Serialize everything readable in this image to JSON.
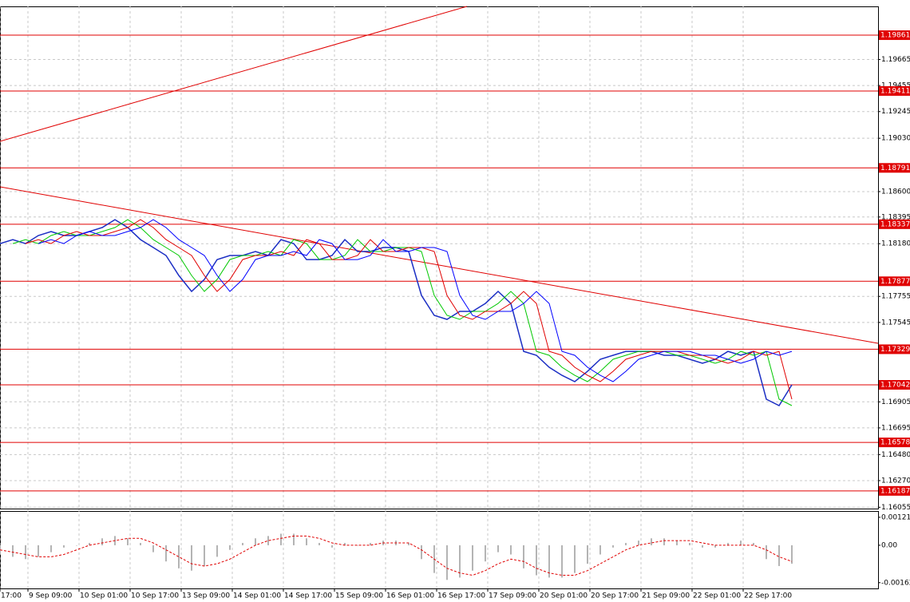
{
  "chart_data": [
    {
      "type": "line",
      "xlim": [
        0,
        68.75
      ],
      "ylim": [
        1.16038,
        1.20093
      ],
      "yticks": [
        1.19665,
        1.19455,
        1.19245,
        {
          "value": 1.1903,
          "label": "1.19030"
        },
        {
          "value": 1.186,
          "label": "1.18600"
        },
        1.18395,
        {
          "value": 1.1818,
          "label": "1.18180"
        },
        1.17755,
        1.17545,
        1.16905,
        1.16695,
        {
          "value": 1.1648,
          "label": "1.16480"
        },
        {
          "value": 1.1627,
          "label": "1.16270"
        },
        1.16055
      ],
      "xticks": [
        {
          "value": 0,
          "label": "17:00"
        },
        {
          "value": 2.1875,
          "label": "9 Sep 09:00"
        },
        {
          "value": 6.1875,
          "label": "10 Sep 01:00"
        },
        {
          "value": 10.1875,
          "label": "10 Sep 17:00"
        },
        {
          "value": 14.1875,
          "label": "13 Sep 09:00"
        },
        {
          "value": 18.1875,
          "label": "14 Sep 01:00"
        },
        {
          "value": 22.1875,
          "label": "14 Sep 17:00"
        },
        {
          "value": 26.1875,
          "label": "15 Sep 09:00"
        },
        {
          "value": 30.1875,
          "label": "16 Sep 01:00"
        },
        {
          "value": 34.1875,
          "label": "16 Sep 17:00"
        },
        {
          "value": 38.1875,
          "label": "17 Sep 09:00"
        },
        {
          "value": 42.1875,
          "label": "20 Sep 01:00"
        },
        {
          "value": 46.1875,
          "label": "20 Sep 17:00"
        },
        {
          "value": 50.1875,
          "label": "21 Sep 09:00"
        },
        {
          "value": 54.1875,
          "label": "22 Sep 01:00"
        },
        {
          "value": 58.1875,
          "label": "22 Sep 17:00"
        }
      ],
      "grid": true,
      "levels": [
        1.19861,
        1.19411,
        1.18791,
        1.18337,
        1.17877,
        1.17329,
        1.17042,
        1.16578,
        1.16187
      ],
      "level_color": "#e00000",
      "trendlines": [
        {
          "x": [
            0,
            36.56
          ],
          "y": [
            1.19005,
            1.20093
          ]
        },
        {
          "x": [
            0,
            68.75
          ],
          "y": [
            1.18638,
            1.17377
          ]
        }
      ],
      "series": [
        {
          "color": "#1c2fc4",
          "values": [
            1.18181,
            1.18213,
            1.18181,
            1.18246,
            1.18278,
            1.18246,
            1.18246,
            1.18278,
            1.1831,
            1.18374,
            1.1831,
            1.18213,
            1.18149,
            1.18085,
            1.17924,
            1.17795,
            1.17892,
            1.18052,
            1.18085,
            1.18085,
            1.18117,
            1.18085,
            1.18213,
            1.18181,
            1.18052,
            1.18052,
            1.18085,
            1.18213,
            1.18117,
            1.18117,
            1.18149,
            1.18149,
            1.18117,
            1.17763,
            1.17602,
            1.1757,
            1.17634,
            1.17634,
            1.17698,
            1.17795,
            1.17698,
            1.17312,
            1.1728,
            1.17184,
            1.17119,
            1.17068,
            1.17151,
            1.17248,
            1.1728,
            1.17312,
            1.17312,
            1.17312,
            1.1728,
            1.1728,
            1.17248,
            1.17216,
            1.17248,
            1.17312,
            1.1728,
            1.17312,
            1.16926,
            1.16875,
            1.17042
          ]
        },
        {
          "color": "#00c800",
          "values": [
            null,
            1.18181,
            1.18213,
            1.18181,
            1.18246,
            1.18278,
            1.18246,
            1.18246,
            1.18278,
            1.1831,
            1.18374,
            1.1831,
            1.18213,
            1.18149,
            1.18085,
            1.17924,
            1.17795,
            1.17892,
            1.18052,
            1.18085,
            1.18085,
            1.18117,
            1.18085,
            1.18213,
            1.18181,
            1.18052,
            1.18052,
            1.18085,
            1.18213,
            1.18117,
            1.18117,
            1.18149,
            1.18149,
            1.18117,
            1.17763,
            1.17602,
            1.1757,
            1.17634,
            1.17634,
            1.17698,
            1.17795,
            1.17698,
            1.17312,
            1.1728,
            1.17184,
            1.17119,
            1.17068,
            1.17151,
            1.17248,
            1.1728,
            1.17312,
            1.17312,
            1.17312,
            1.1728,
            1.1728,
            1.17248,
            1.17216,
            1.17248,
            1.17312,
            1.1728,
            1.17312,
            1.16926,
            1.16875
          ]
        },
        {
          "color": "#e00000",
          "values": [
            null,
            null,
            1.18181,
            1.18213,
            1.18181,
            1.18246,
            1.18278,
            1.18246,
            1.18246,
            1.18278,
            1.1831,
            1.18374,
            1.1831,
            1.18213,
            1.18149,
            1.18085,
            1.17924,
            1.17795,
            1.17892,
            1.18052,
            1.18085,
            1.18085,
            1.18117,
            1.18085,
            1.18213,
            1.18181,
            1.18052,
            1.18052,
            1.18085,
            1.18213,
            1.18117,
            1.18117,
            1.18149,
            1.18149,
            1.18117,
            1.17763,
            1.17602,
            1.1757,
            1.17634,
            1.17634,
            1.17698,
            1.17795,
            1.17698,
            1.17312,
            1.1728,
            1.17184,
            1.17119,
            1.17068,
            1.17151,
            1.17248,
            1.1728,
            1.17312,
            1.17312,
            1.17312,
            1.1728,
            1.1728,
            1.17248,
            1.17216,
            1.17248,
            1.17312,
            1.1728,
            1.17312,
            1.16926
          ]
        },
        {
          "color": "#0000ff",
          "values": [
            null,
            null,
            null,
            1.18181,
            1.18213,
            1.18181,
            1.18246,
            1.18278,
            1.18246,
            1.18246,
            1.18278,
            1.1831,
            1.18374,
            1.1831,
            1.18213,
            1.18149,
            1.18085,
            1.17924,
            1.17795,
            1.17892,
            1.18052,
            1.18085,
            1.18085,
            1.18117,
            1.18085,
            1.18213,
            1.18181,
            1.18052,
            1.18052,
            1.18085,
            1.18213,
            1.18117,
            1.18117,
            1.18149,
            1.18149,
            1.18117,
            1.17763,
            1.17602,
            1.1757,
            1.17634,
            1.17634,
            1.17698,
            1.17795,
            1.17698,
            1.17312,
            1.1728,
            1.17184,
            1.17119,
            1.17068,
            1.17151,
            1.17248,
            1.1728,
            1.17312,
            1.17312,
            1.17312,
            1.1728,
            1.1728,
            1.17248,
            1.17216,
            1.17248,
            1.17312,
            1.1728,
            1.17312
          ]
        }
      ]
    },
    {
      "type": "bar",
      "xlim": [
        0,
        68.75
      ],
      "ylim": [
        -0.00187,
        0.00145
      ],
      "yticks": [
        0.001211,
        {
          "value": 0,
          "label": "0.00"
        },
        -0.00162
      ],
      "color": "#b4b4b4",
      "values": [
        -0.0004,
        -0.0005,
        -0.0006,
        -0.0005,
        -0.0003,
        -0.0001,
        0,
        0.0001,
        0.0003,
        0.0004,
        0.0003,
        0.0001,
        -0.0003,
        -0.0007,
        -0.001,
        -0.0011,
        -0.0009,
        -0.0005,
        -0.0002,
        0.0001,
        0.0003,
        0.0004,
        0.0005,
        0.0005,
        0.0003,
        0.0001,
        -0.0001,
        0.0001,
        0,
        0.0001,
        0.0002,
        0.0002,
        0.0001,
        -0.0006,
        -0.0012,
        -0.0015,
        -0.0014,
        -0.0011,
        -0.0007,
        -0.0003,
        -0.0004,
        -0.001,
        -0.0013,
        -0.0014,
        -0.0014,
        -0.0012,
        -0.0008,
        -0.0004,
        -0.0001,
        0.0001,
        0.0002,
        0.0003,
        0.0003,
        0.0002,
        0.0001,
        -0.0001,
        -0.0001,
        0.0001,
        0.0002,
        0.0001,
        -0.0006,
        -0.0009,
        -0.0008
      ],
      "signal": {
        "color": "#e00000",
        "values": [
          -0.0002,
          -0.0003,
          -0.0004,
          -0.0005,
          -0.0005,
          -0.0004,
          -0.0002,
          0,
          0.0001,
          0.0002,
          0.0003,
          0.0003,
          0.0001,
          -0.0002,
          -0.0005,
          -0.0008,
          -0.0009,
          -0.0008,
          -0.0006,
          -0.0003,
          0,
          0.0002,
          0.0003,
          0.0004,
          0.0004,
          0.0003,
          0.0001,
          0,
          0,
          0,
          0.0001,
          0.0001,
          0.0001,
          -0.0002,
          -0.0006,
          -0.001,
          -0.0012,
          -0.0013,
          -0.0011,
          -0.0008,
          -0.0006,
          -0.0007,
          -0.001,
          -0.0012,
          -0.0013,
          -0.0013,
          -0.0011,
          -0.0008,
          -0.0005,
          -0.0002,
          0,
          0.0001,
          0.0002,
          0.0002,
          0.0002,
          0.0001,
          0,
          0,
          0,
          0,
          -0.0002,
          -0.0005,
          -0.0007
        ]
      }
    }
  ]
}
